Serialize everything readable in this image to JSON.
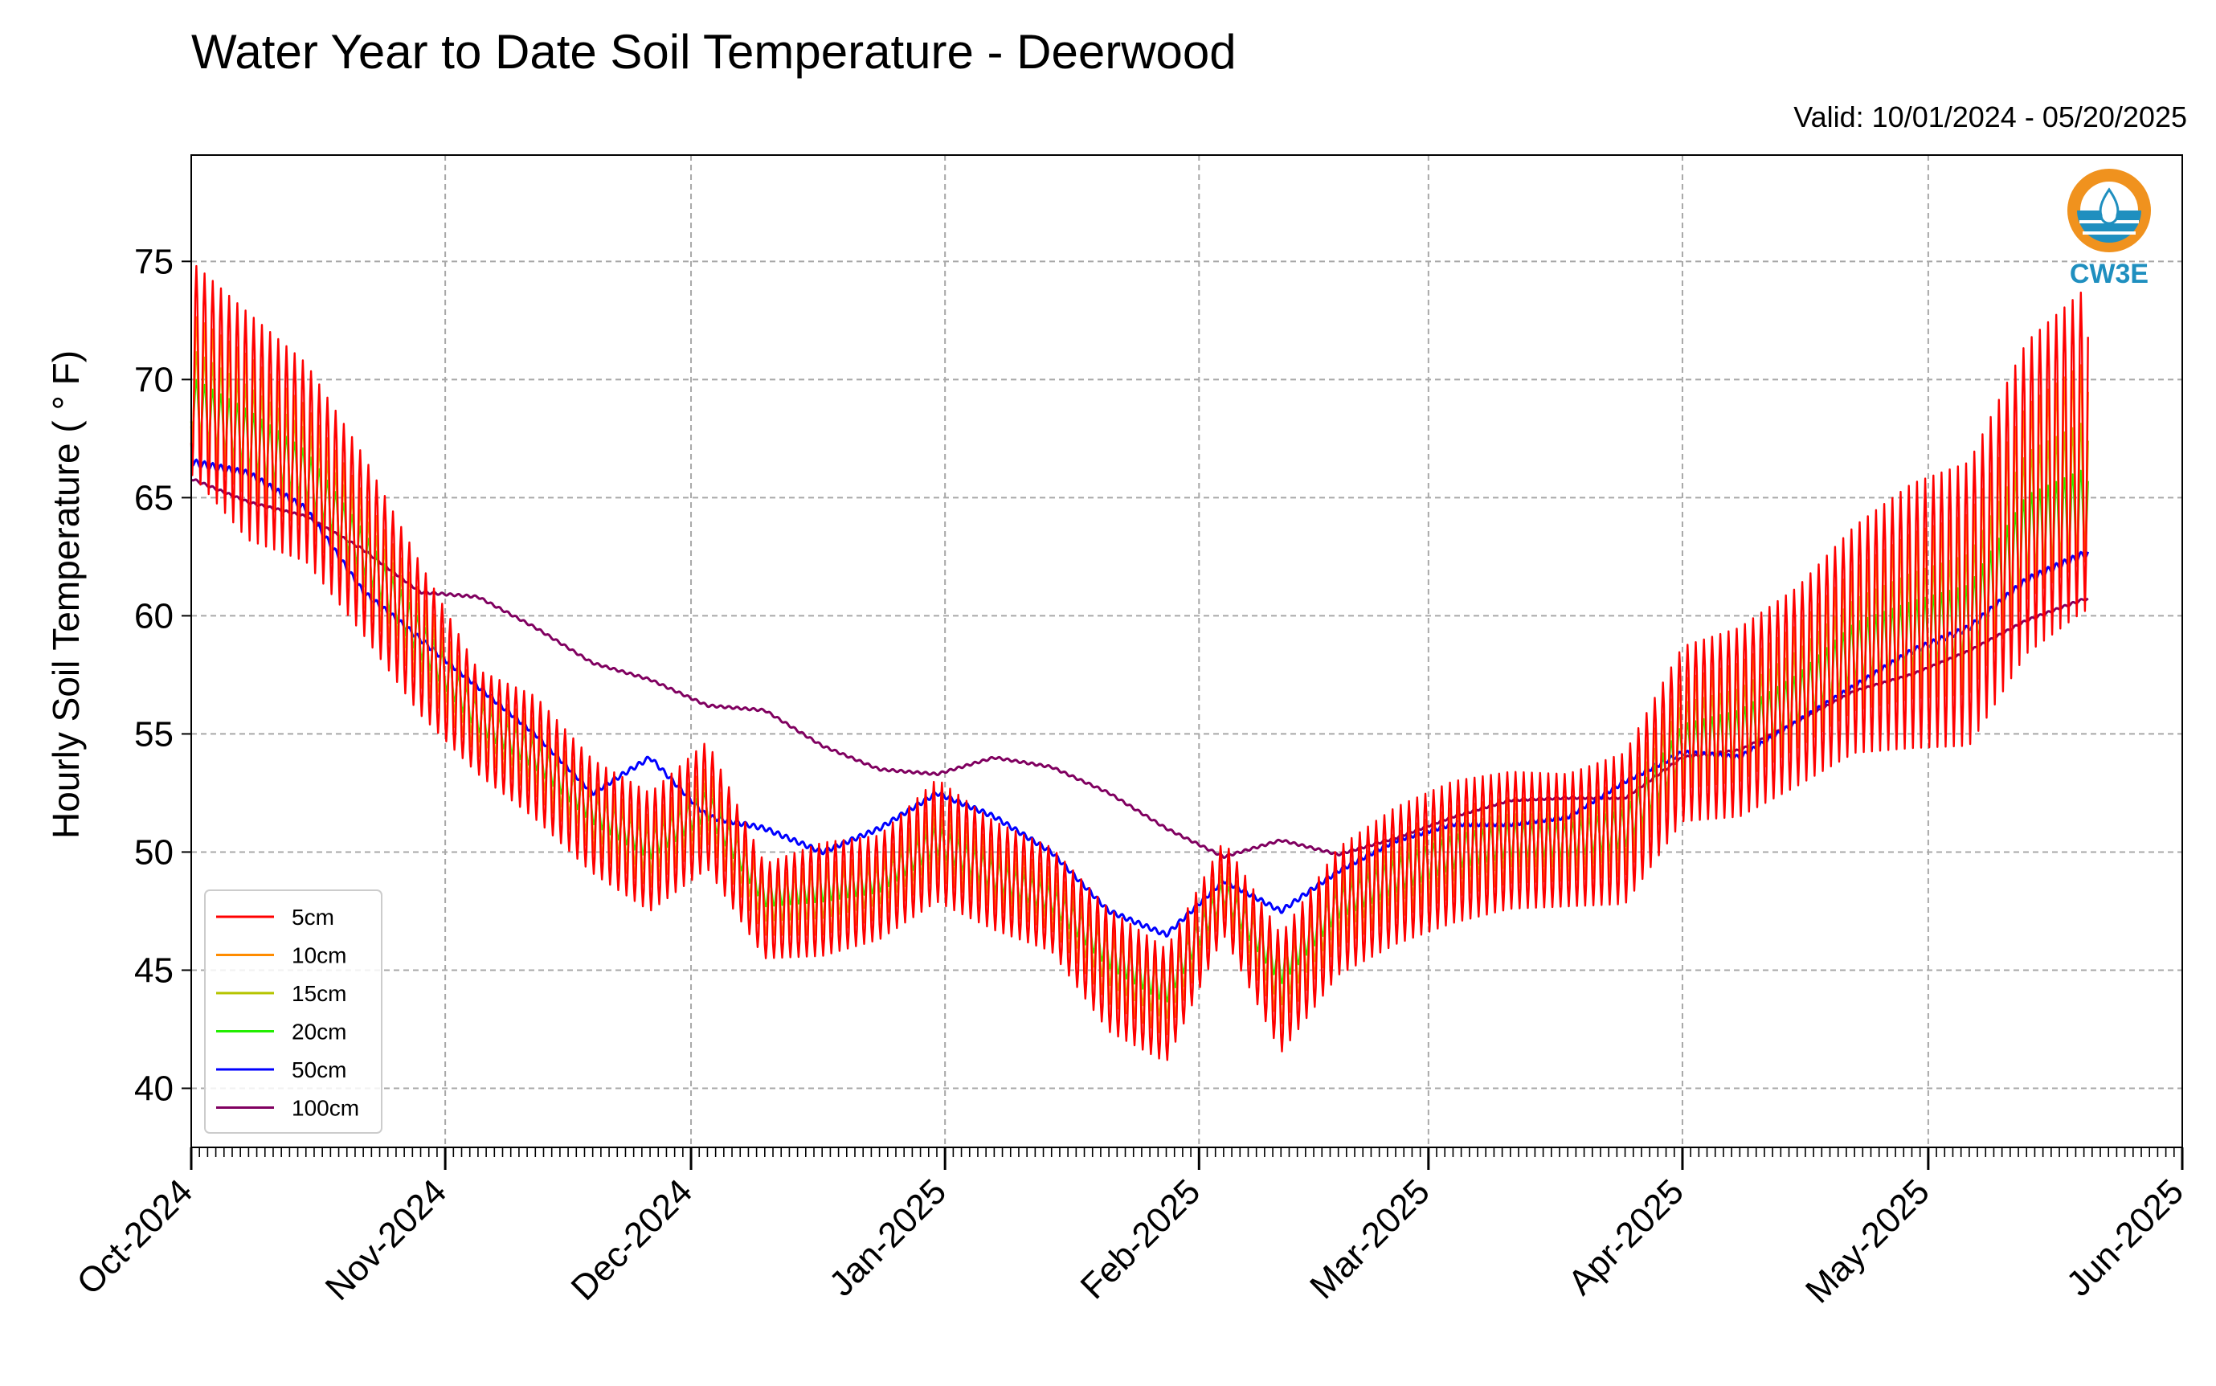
{
  "header": {
    "title": "Water Year to Date Soil Temperature - Deerwood",
    "valid": "Valid: 10/01/2024 - 05/20/2025"
  },
  "logo": {
    "text": "CW3E",
    "icon": "water-drop-sun-icon",
    "color_orange": "#f0921e",
    "color_blue": "#1f8fbf"
  },
  "chart_data": {
    "type": "line",
    "title": "Water Year to Date Soil Temperature - Deerwood",
    "subtitle": "Valid: 10/01/2024 - 05/20/2025",
    "ylabel": "Hourly Soil Temperature ( ° F)",
    "xlabel": "",
    "ylim": [
      37.5,
      79.5
    ],
    "xlim": [
      "2024-10-01",
      "2025-06-01"
    ],
    "yticks": [
      40,
      45,
      50,
      55,
      60,
      65,
      70,
      75
    ],
    "xticks": [
      {
        "date": "2024-10-01",
        "label": "Oct-2024"
      },
      {
        "date": "2024-11-01",
        "label": "Nov-2024"
      },
      {
        "date": "2024-12-01",
        "label": "Dec-2024"
      },
      {
        "date": "2025-01-01",
        "label": "Jan-2025"
      },
      {
        "date": "2025-02-01",
        "label": "Feb-2025"
      },
      {
        "date": "2025-03-01",
        "label": "Mar-2025"
      },
      {
        "date": "2025-04-01",
        "label": "Apr-2025"
      },
      {
        "date": "2025-05-01",
        "label": "May-2025"
      },
      {
        "date": "2025-06-01",
        "label": "Jun-2025"
      }
    ],
    "grid": true,
    "legend_position": "lower-left",
    "dates": [
      "2024-10-01",
      "2024-10-08",
      "2024-10-15",
      "2024-10-22",
      "2024-10-29",
      "2024-11-05",
      "2024-11-12",
      "2024-11-19",
      "2024-11-26",
      "2024-12-03",
      "2024-12-10",
      "2024-12-17",
      "2024-12-24",
      "2024-12-31",
      "2025-01-07",
      "2025-01-14",
      "2025-01-21",
      "2025-01-28",
      "2025-02-04",
      "2025-02-11",
      "2025-02-18",
      "2025-02-25",
      "2025-03-04",
      "2025-03-11",
      "2025-03-18",
      "2025-03-25",
      "2025-04-01",
      "2025-04-08",
      "2025-04-15",
      "2025-04-22",
      "2025-04-29",
      "2025-05-06",
      "2025-05-13",
      "2025-05-20"
    ],
    "series": [
      {
        "name": "5cm",
        "color": "#ff0000",
        "values": [
          70.5,
          68,
          66.5,
          63,
          59,
          55.5,
          54,
          51.5,
          50,
          52,
          47.5,
          48,
          48.5,
          50.5,
          49,
          48,
          45,
          43.5,
          48.5,
          44,
          47.5,
          49,
          50,
          50.5,
          50.5,
          51,
          55,
          55.5,
          57,
          59,
          60,
          60.5,
          65,
          67
        ],
        "amplitude": [
          4.5,
          4.8,
          4.2,
          3.8,
          3.2,
          2.2,
          2.6,
          2.4,
          2.5,
          2.7,
          2.0,
          2.4,
          2.2,
          2.6,
          2.3,
          2.2,
          2.6,
          2.4,
          2.0,
          2.5,
          2.7,
          2.9,
          3.0,
          2.9,
          2.8,
          3.2,
          3.7,
          4.0,
          4.2,
          4.8,
          5.6,
          6.0,
          6.6,
          6.8
        ]
      },
      {
        "name": "10cm",
        "color": "#ff8c00",
        "values": [
          70,
          68,
          66.3,
          62.8,
          59,
          55.5,
          54,
          51.5,
          50,
          52,
          47.7,
          48,
          48.5,
          50.5,
          49,
          48,
          45.2,
          43.7,
          48.5,
          44.2,
          47.6,
          49,
          50,
          50.5,
          50.5,
          51,
          55,
          55.5,
          57,
          59,
          60,
          60.5,
          64.8,
          66.5
        ],
        "amplitude": [
          2.8,
          3.0,
          2.6,
          2.4,
          2.0,
          1.4,
          1.6,
          1.5,
          1.5,
          1.6,
          1.2,
          1.5,
          1.3,
          1.6,
          1.4,
          1.3,
          1.6,
          1.5,
          1.2,
          1.5,
          1.6,
          1.8,
          1.9,
          1.8,
          1.7,
          2.0,
          2.3,
          2.5,
          2.6,
          3.0,
          3.5,
          3.8,
          4.1,
          4.2
        ]
      },
      {
        "name": "15cm",
        "color": "#b5c400",
        "values": [
          69.5,
          67.8,
          66.2,
          62.8,
          59,
          55.6,
          54,
          51.6,
          50.1,
          52,
          47.9,
          48.2,
          48.6,
          50.5,
          49,
          48,
          45.4,
          43.9,
          48.4,
          44.5,
          47.7,
          49,
          50,
          50.5,
          50.5,
          51,
          54.8,
          55.3,
          56.8,
          58.8,
          59.6,
          60.2,
          64.3,
          65.5
        ],
        "amplitude": [
          1.8,
          1.9,
          1.7,
          1.5,
          1.3,
          0.9,
          1.0,
          1.0,
          1.0,
          1.0,
          0.8,
          1.0,
          0.8,
          1.0,
          0.9,
          0.8,
          1.0,
          1.0,
          0.8,
          1.0,
          1.0,
          1.1,
          1.2,
          1.1,
          1.1,
          1.3,
          1.5,
          1.6,
          1.7,
          1.9,
          2.2,
          2.4,
          2.6,
          2.7
        ]
      },
      {
        "name": "20cm",
        "color": "#22ee00",
        "values": [
          69,
          67.5,
          66,
          62.7,
          59,
          55.7,
          54.1,
          51.8,
          50.3,
          52,
          48.2,
          48.5,
          48.8,
          50.5,
          49,
          48,
          45.7,
          44.2,
          48.3,
          45,
          47.8,
          49,
          50,
          50.5,
          50.5,
          51,
          54.5,
          55,
          56.5,
          58.5,
          59.2,
          59.8,
          63.5,
          64.5
        ],
        "amplitude": [
          1.1,
          1.2,
          1.0,
          0.9,
          0.8,
          0.6,
          0.6,
          0.6,
          0.6,
          0.6,
          0.5,
          0.6,
          0.5,
          0.6,
          0.6,
          0.5,
          0.6,
          0.6,
          0.5,
          0.6,
          0.6,
          0.7,
          0.7,
          0.7,
          0.7,
          0.8,
          0.9,
          1.0,
          1.0,
          1.2,
          1.4,
          1.5,
          1.6,
          1.7
        ]
      },
      {
        "name": "50cm",
        "color": "#0000ff",
        "values": [
          66.5,
          66,
          64.5,
          61,
          59,
          57,
          55,
          52.5,
          54,
          51.5,
          51,
          50,
          51,
          52.5,
          51.5,
          50,
          47.5,
          46.5,
          48.8,
          47.5,
          49.2,
          50.5,
          51.2,
          51.2,
          51.5,
          53,
          54.2,
          54,
          55.5,
          57,
          58.5,
          59.5,
          61.5,
          62.6
        ],
        "amplitude": [
          0.15,
          0.15,
          0.15,
          0.12,
          0.12,
          0.1,
          0.1,
          0.1,
          0.1,
          0.1,
          0.1,
          0.1,
          0.1,
          0.1,
          0.1,
          0.1,
          0.1,
          0.1,
          0.1,
          0.1,
          0.1,
          0.1,
          0.1,
          0.1,
          0.1,
          0.1,
          0.1,
          0.1,
          0.1,
          0.12,
          0.12,
          0.12,
          0.15,
          0.15
        ]
      },
      {
        "name": "100cm",
        "color": "#800060",
        "values": [
          65.8,
          64.8,
          64.2,
          62.8,
          61,
          60.8,
          59.5,
          58,
          57.3,
          56.2,
          56,
          54.5,
          53.5,
          53.3,
          54,
          53.6,
          52.5,
          51,
          49.8,
          50.5,
          49.9,
          50.6,
          51.5,
          52.2,
          52.3,
          52.3,
          54,
          54.3,
          55.5,
          56.8,
          57.5,
          58.5,
          59.8,
          60.7
        ],
        "amplitude": [
          0.05,
          0.05,
          0.05,
          0.05,
          0.05,
          0.05,
          0.05,
          0.05,
          0.05,
          0.05,
          0.05,
          0.05,
          0.05,
          0.05,
          0.05,
          0.05,
          0.05,
          0.05,
          0.05,
          0.05,
          0.05,
          0.05,
          0.05,
          0.05,
          0.05,
          0.05,
          0.05,
          0.05,
          0.05,
          0.05,
          0.05,
          0.05,
          0.05,
          0.05
        ]
      }
    ]
  }
}
